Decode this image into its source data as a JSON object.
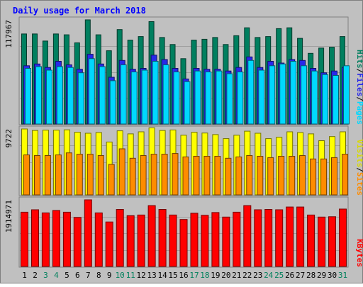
{
  "chart_data": {
    "type": "bar",
    "title": "Daily usage for March 2018",
    "x": [
      "1",
      "2",
      "3",
      "4",
      "5",
      "6",
      "7",
      "8",
      "9",
      "10",
      "11",
      "12",
      "13",
      "14",
      "15",
      "16",
      "17",
      "18",
      "19",
      "20",
      "21",
      "22",
      "23",
      "24",
      "25",
      "26",
      "27",
      "28",
      "29",
      "30",
      "31"
    ],
    "weekend_days": [
      "3",
      "4",
      "10",
      "11",
      "17",
      "18",
      "24",
      "25",
      "31"
    ],
    "panels": [
      {
        "id": "hits-files-pages",
        "ymax_label": "117967",
        "ymax": 117967,
        "legend": [
          "Pages",
          "Files",
          "Hits"
        ],
        "series": [
          {
            "name": "Hits",
            "color": "#007f5f",
            "values": [
              102000,
              102000,
              94000,
              102000,
              101000,
              92000,
              117967,
              101000,
              83000,
              107000,
              95000,
              99000,
              116000,
              98000,
              90000,
              74000,
              95000,
              96000,
              98000,
              90000,
              100000,
              109000,
              98000,
              99000,
              108000,
              109000,
              97000,
              80000,
              86000,
              87000,
              99000
            ]
          },
          {
            "name": "Files",
            "color": "#2828ea",
            "values": [
              66000,
              68000,
              64000,
              71000,
              67000,
              62000,
              79000,
              68000,
              53000,
              72000,
              62000,
              63000,
              78000,
              73000,
              63000,
              51000,
              63000,
              62000,
              62000,
              60000,
              64000,
              76000,
              64000,
              71000,
              69000,
              73000,
              72000,
              63000,
              58000,
              60000,
              64000
            ]
          },
          {
            "name": "Pages",
            "color": "#00d8ff",
            "values": [
              63000,
              65000,
              61000,
              65000,
              64000,
              58000,
              74000,
              65000,
              49000,
              67000,
              59000,
              61000,
              71000,
              67000,
              59000,
              48000,
              60000,
              59000,
              60000,
              57000,
              59000,
              72000,
              61000,
              66000,
              68000,
              71000,
              66000,
              60000,
              56000,
              55000,
              66000
            ]
          }
        ]
      },
      {
        "id": "visits-sites",
        "ymax_label": "9722",
        "ymax": 9722,
        "legend": [
          "Sites",
          "Visits"
        ],
        "series": [
          {
            "name": "Visits",
            "color": "#ffff00",
            "values": [
              9722,
              9500,
              9550,
              9550,
              9600,
              9250,
              9100,
              9200,
              7800,
              9450,
              9000,
              9300,
              9900,
              9500,
              9580,
              8800,
              9230,
              9130,
              8900,
              8300,
              8800,
              9400,
              9100,
              8300,
              8500,
              9300,
              9200,
              9000,
              8000,
              8600,
              9300
            ]
          },
          {
            "name": "Sites",
            "color": "#ff8c00",
            "values": [
              5900,
              5800,
              5800,
              5900,
              6200,
              6000,
              6000,
              5800,
              4500,
              6800,
              5400,
              5800,
              6000,
              6000,
              6100,
              5600,
              5700,
              5700,
              5700,
              5400,
              5600,
              5800,
              5700,
              5500,
              5700,
              5700,
              5800,
              5300,
              5300,
              5500,
              6000
            ]
          }
        ]
      },
      {
        "id": "kbytes",
        "ymax_label": "1914971",
        "ymax": 1914971,
        "legend": [
          "KBytes"
        ],
        "series": [
          {
            "name": "KBytes",
            "color": "#ff0000",
            "values": [
              1560000,
              1630000,
              1540000,
              1610000,
              1560000,
              1410000,
              1914971,
              1540000,
              1280000,
              1640000,
              1460000,
              1480000,
              1750000,
              1640000,
              1480000,
              1350000,
              1530000,
              1470000,
              1550000,
              1420000,
              1560000,
              1750000,
              1630000,
              1640000,
              1630000,
              1710000,
              1710000,
              1480000,
              1420000,
              1430000,
              1650000
            ]
          }
        ]
      }
    ],
    "colors": {
      "background": "#c0c0c0",
      "title": "#0000ff",
      "weekday_label": "#000000",
      "weekend_label": "#00805c",
      "gridline": "#a0a0a0"
    }
  }
}
